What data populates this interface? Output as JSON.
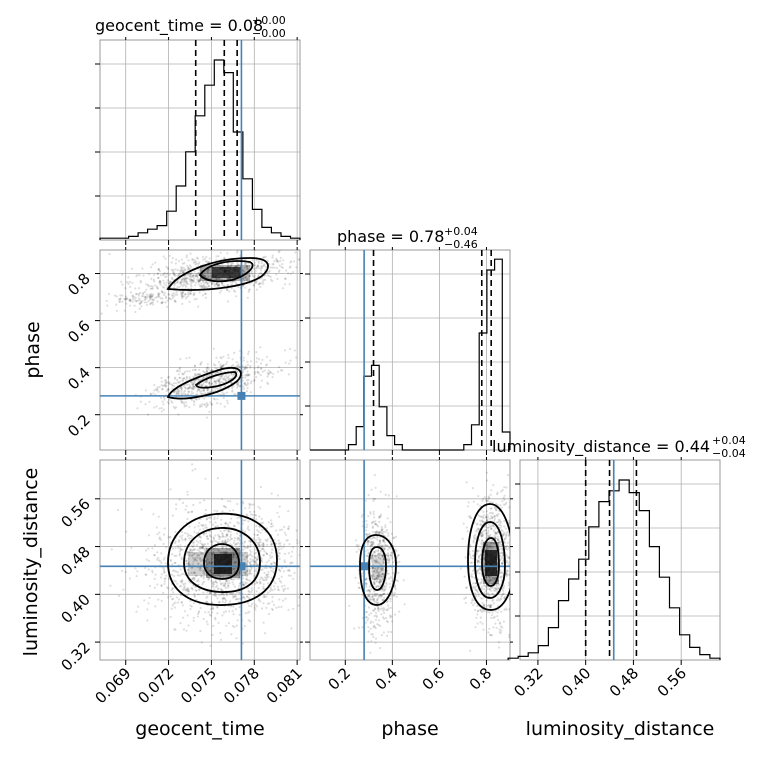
{
  "chart_data": {
    "type": "corner",
    "parameters": [
      "geocent_time",
      "phase",
      "luminosity_distance"
    ],
    "titles": [
      {
        "param": "geocent_time",
        "label": "geocent_time = 0.08",
        "plus": "+0.00",
        "minus": "−0.00"
      },
      {
        "param": "phase",
        "label": "phase = 0.78",
        "plus": "+0.04",
        "minus": "−0.46"
      },
      {
        "param": "luminosity_distance",
        "label": "luminosity_distance = 0.44",
        "plus": "+0.04",
        "minus": "−0.04"
      }
    ],
    "axis_labels": {
      "x": [
        "geocent_time",
        "phase",
        "luminosity_distance"
      ],
      "y": [
        "phase",
        "luminosity_distance"
      ]
    },
    "ticks": {
      "geocent_time": [
        "0.069",
        "0.072",
        "0.075",
        "0.078",
        "0.081"
      ],
      "phase": [
        "0.2",
        "0.4",
        "0.6",
        "0.8"
      ],
      "luminosity_distance": [
        "0.32",
        "0.40",
        "0.48",
        "0.56"
      ]
    },
    "truths": {
      "geocent_time": 0.0771,
      "phase": 0.28,
      "luminosity_distance": 0.447
    },
    "quantiles": {
      "geocent_time": [
        0.0739,
        0.0759,
        0.0768
      ],
      "phase": [
        0.32,
        0.78,
        0.82
      ],
      "luminosity_distance": [
        0.4,
        0.44,
        0.485
      ]
    },
    "histograms": {
      "geocent_time": {
        "range": [
          0.0672,
          0.0812
        ],
        "counts": [
          0.01,
          0.01,
          0.01,
          0.02,
          0.04,
          0.06,
          0.08,
          0.16,
          0.3,
          0.49,
          0.69,
          0.86,
          1.0,
          0.93,
          0.6,
          0.34,
          0.17,
          0.07,
          0.04,
          0.02,
          0.01
        ]
      },
      "phase": {
        "range": [
          0.05,
          0.9
        ],
        "counts": [
          0.0,
          0.0,
          0.0,
          0.0,
          0.0,
          0.03,
          0.13,
          0.41,
          0.47,
          0.24,
          0.08,
          0.03,
          0.0,
          0.0,
          0.0,
          0.0,
          0.0,
          0.0,
          0.0,
          0.0,
          0.03,
          0.14,
          0.65,
          1.0,
          1.06,
          0.1
        ]
      },
      "luminosity_distance": {
        "range": [
          0.27,
          0.625
        ],
        "counts": [
          0.01,
          0.02,
          0.04,
          0.08,
          0.18,
          0.33,
          0.45,
          0.56,
          0.74,
          0.88,
          0.94,
          1.0,
          0.93,
          0.83,
          0.63,
          0.46,
          0.29,
          0.14,
          0.07,
          0.03,
          0.01
        ]
      }
    },
    "ranges": {
      "geocent_time": [
        0.0672,
        0.0812
      ],
      "phase": [
        0.05,
        0.9
      ],
      "luminosity_distance": [
        0.29,
        0.625
      ]
    },
    "grid": true
  }
}
